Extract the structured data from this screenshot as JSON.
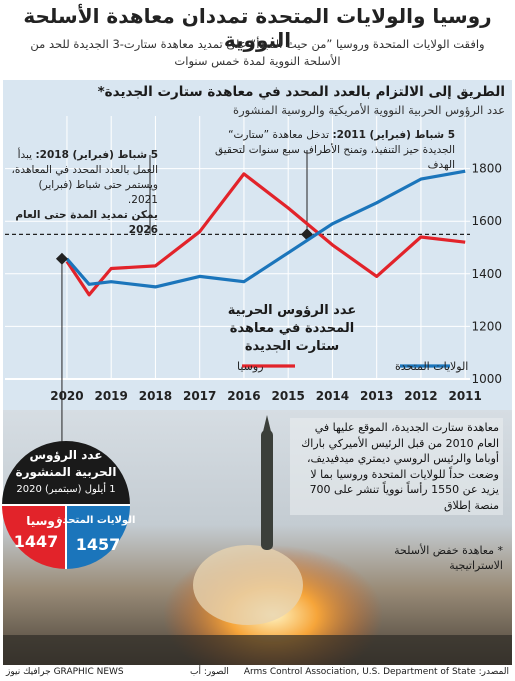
{
  "header": {
    "title": "روسيا والولايات المتحدة تمددان معاهدة الأسلحة النووية",
    "subtitle": "وافقت الولايات المتحدة وروسيا ”من حيث المبدأ“ على تمديد معاهدة ستارت-3 الجديدة للحد من الأسلحة النووية لمدة خمس سنوات"
  },
  "chart_data": {
    "type": "line",
    "title": "الطريق إلى الالتزام بالعدد المحدد في معاهدة ستارت الجديدة*",
    "subtitle": "عدد الرؤوس الحربية النووية الأمريكية والروسية المنشورة",
    "x": [
      2011,
      2012,
      2013,
      2014,
      2015,
      2016,
      2017,
      2018,
      2019,
      2019.5,
      2020
    ],
    "series": [
      {
        "name": "روسيا",
        "color": "#e2232a",
        "values": [
          1520,
          1540,
          1390,
          1510,
          1650,
          1780,
          1560,
          1430,
          1420,
          1320,
          1447
        ]
      },
      {
        "name": "الولايات المتحدة",
        "color": "#1b75bb",
        "values": [
          1790,
          1760,
          1670,
          1590,
          1480,
          1370,
          1390,
          1350,
          1370,
          1360,
          1457
        ]
      }
    ],
    "xlim": [
      2010.1,
      2021.4
    ],
    "x_reversed": true,
    "xticks": [
      2011,
      2012,
      2013,
      2014,
      2015,
      2016,
      2017,
      2018,
      2019,
      2020
    ],
    "ylim": [
      1000,
      2000
    ],
    "yticks": [
      1000,
      1200,
      1400,
      1600,
      1800
    ],
    "grid": true,
    "limit_line": 1550,
    "limit_label": "عدد الرؤوس الحربية المحددة في معاهدة ستارت الجديدة",
    "annotations": [
      {
        "date": "5 شباط (فبراير) 2011:",
        "text": "تدخل معاهدة ”ستارت“ الجديدة حيز التنفيذ، وتمنح الأطراف سبع سنوات لتحقيق الهدف"
      },
      {
        "date": "5 شباط (فبراير) 2018:",
        "text": "يبدأ العمل بالعدد المحدد في المعاهدة، ويستمر حتى شباط (فبراير) 2021.",
        "bold": "يمكن تمديد المدة حتى العام 2026"
      }
    ]
  },
  "counts": {
    "title": "عدد الرؤوس الحربية المنشورة",
    "date": "1 أيلول (سبتمبر) 2020",
    "russia": {
      "label": "روسيا",
      "value": "1447"
    },
    "usa": {
      "label": "الولايات المتحدة",
      "value": "1457"
    }
  },
  "body_text": "معاهدة ستارت الجديدة، الموقع عليها في العام 2010 من قبل الرئيس الأميركي باراك أوباما والرئيس الروسي ديمتري ميدفيديف، وضعت حداً للولايات المتحدة وروسيا بما لا يزيد عن 1550 رأساً نووياً تنشر على 700 منصة إطلاق",
  "footnote": "* معاهدة خفض الأسلحة الاستراتيجية",
  "footer": {
    "source": "المصدر: Arms Control Association, U.S. Department of State",
    "photos": "الصور: أب",
    "brand": "GRAPHIC NEWS جرافيك نيوز"
  }
}
